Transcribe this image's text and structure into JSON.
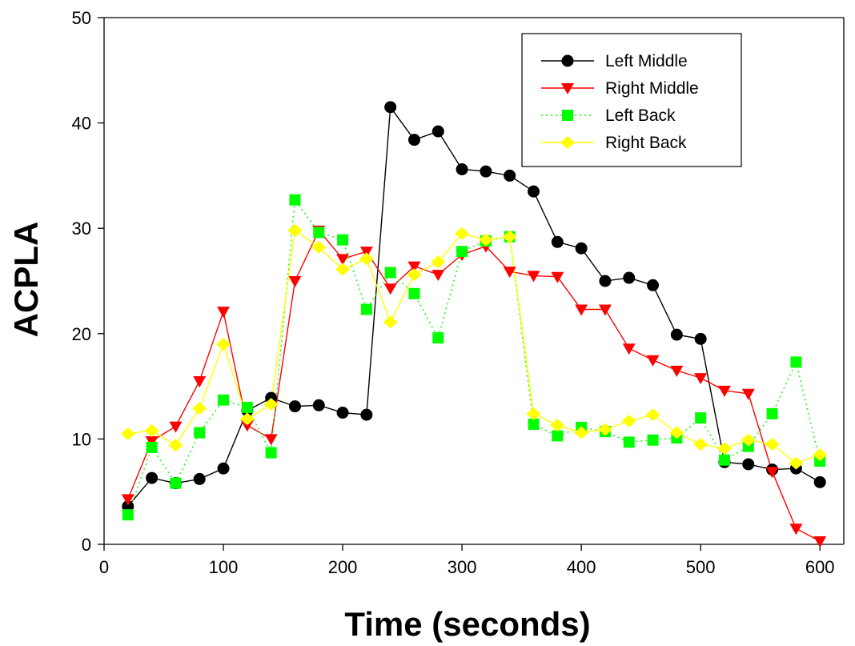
{
  "chart_data": {
    "type": "line",
    "title": "",
    "xlabel": "Time (seconds)",
    "ylabel": "ACPLA",
    "xlim": [
      0,
      620
    ],
    "ylim": [
      0,
      50
    ],
    "xticks": [
      0,
      100,
      200,
      300,
      400,
      500,
      600
    ],
    "yticks": [
      0,
      10,
      20,
      30,
      40,
      50
    ],
    "grid": false,
    "legend_position": "top-right",
    "x": [
      20,
      40,
      60,
      80,
      100,
      120,
      140,
      160,
      180,
      200,
      220,
      240,
      260,
      280,
      300,
      320,
      340,
      360,
      380,
      400,
      420,
      440,
      460,
      480,
      500,
      520,
      540,
      560,
      580,
      600
    ],
    "series": [
      {
        "name": "Left Middle",
        "color": "#000000",
        "marker": "circle",
        "line_style": "solid",
        "values": [
          3.6,
          6.3,
          5.8,
          6.2,
          7.2,
          12.7,
          13.9,
          13.1,
          13.2,
          12.5,
          12.3,
          41.5,
          38.4,
          39.2,
          35.6,
          35.4,
          35.0,
          33.5,
          28.7,
          28.1,
          25.0,
          25.3,
          24.6,
          19.9,
          19.5,
          7.8,
          7.6,
          7.1,
          7.2,
          5.9
        ]
      },
      {
        "name": "Right Middle",
        "color": "#ff0000",
        "marker": "triangle-down",
        "line_style": "solid",
        "values": [
          4.3,
          9.8,
          11.2,
          15.5,
          22.1,
          11.3,
          10.0,
          25.0,
          29.8,
          27.1,
          27.8,
          24.3,
          26.4,
          25.6,
          27.5,
          28.3,
          25.9,
          25.5,
          25.4,
          22.3,
          22.3,
          18.6,
          17.5,
          16.5,
          15.8,
          14.6,
          14.3,
          6.9,
          1.5,
          0.3
        ]
      },
      {
        "name": "Left Back",
        "color": "#00ff00",
        "marker": "square",
        "line_style": "dotted",
        "values": [
          2.8,
          9.2,
          5.8,
          10.6,
          13.7,
          13.0,
          8.7,
          32.7,
          29.6,
          28.9,
          22.3,
          25.8,
          23.8,
          19.6,
          27.8,
          28.8,
          29.2,
          11.4,
          10.3,
          11.1,
          10.7,
          9.7,
          9.9,
          10.1,
          12.0,
          8.0,
          9.3,
          12.4,
          17.3,
          7.9
        ]
      },
      {
        "name": "Right Back",
        "color": "#ffff00",
        "marker": "diamond",
        "line_style": "solid",
        "values": [
          10.5,
          10.8,
          9.4,
          12.9,
          19.0,
          11.9,
          13.3,
          29.8,
          28.2,
          26.1,
          27.1,
          21.1,
          25.6,
          26.8,
          29.5,
          28.9,
          29.2,
          12.4,
          11.3,
          10.6,
          10.9,
          11.7,
          12.3,
          10.6,
          9.5,
          9.1,
          9.9,
          9.5,
          7.7,
          8.5
        ]
      }
    ]
  }
}
